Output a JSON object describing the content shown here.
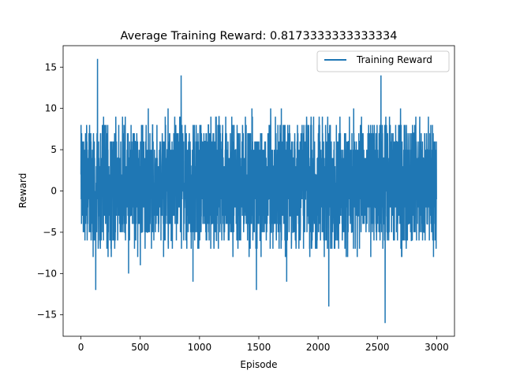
{
  "chart_data": {
    "type": "line",
    "title": "Average Training Reward: 0.8173333333333334",
    "xlabel": "Episode",
    "ylabel": "Reward",
    "xlim": [
      -150,
      3150
    ],
    "ylim": [
      -17.6,
      17.6
    ],
    "x_ticks": [
      0,
      500,
      1000,
      1500,
      2000,
      2500,
      3000
    ],
    "y_ticks": [
      -15,
      -10,
      -5,
      0,
      5,
      10,
      15
    ],
    "grid": false,
    "legend": {
      "location": "upper right",
      "entries": [
        "Training Reward"
      ]
    },
    "series": [
      {
        "name": "Training Reward",
        "color": "#1f77b4",
        "x_start": 0,
        "x_step": 1,
        "count": 3000,
        "mean": 0.8173333333333334,
        "min": -16,
        "max": 16,
        "notable_points": [
          {
            "x": 140,
            "y": 16
          },
          {
            "x": 845,
            "y": 14
          },
          {
            "x": 2530,
            "y": 14
          },
          {
            "x": 2565,
            "y": -16
          },
          {
            "x": 2090,
            "y": -14
          },
          {
            "x": 125,
            "y": -12
          },
          {
            "x": 1480,
            "y": -12
          },
          {
            "x": 1735,
            "y": -11
          },
          {
            "x": 945,
            "y": -11
          }
        ]
      }
    ]
  }
}
